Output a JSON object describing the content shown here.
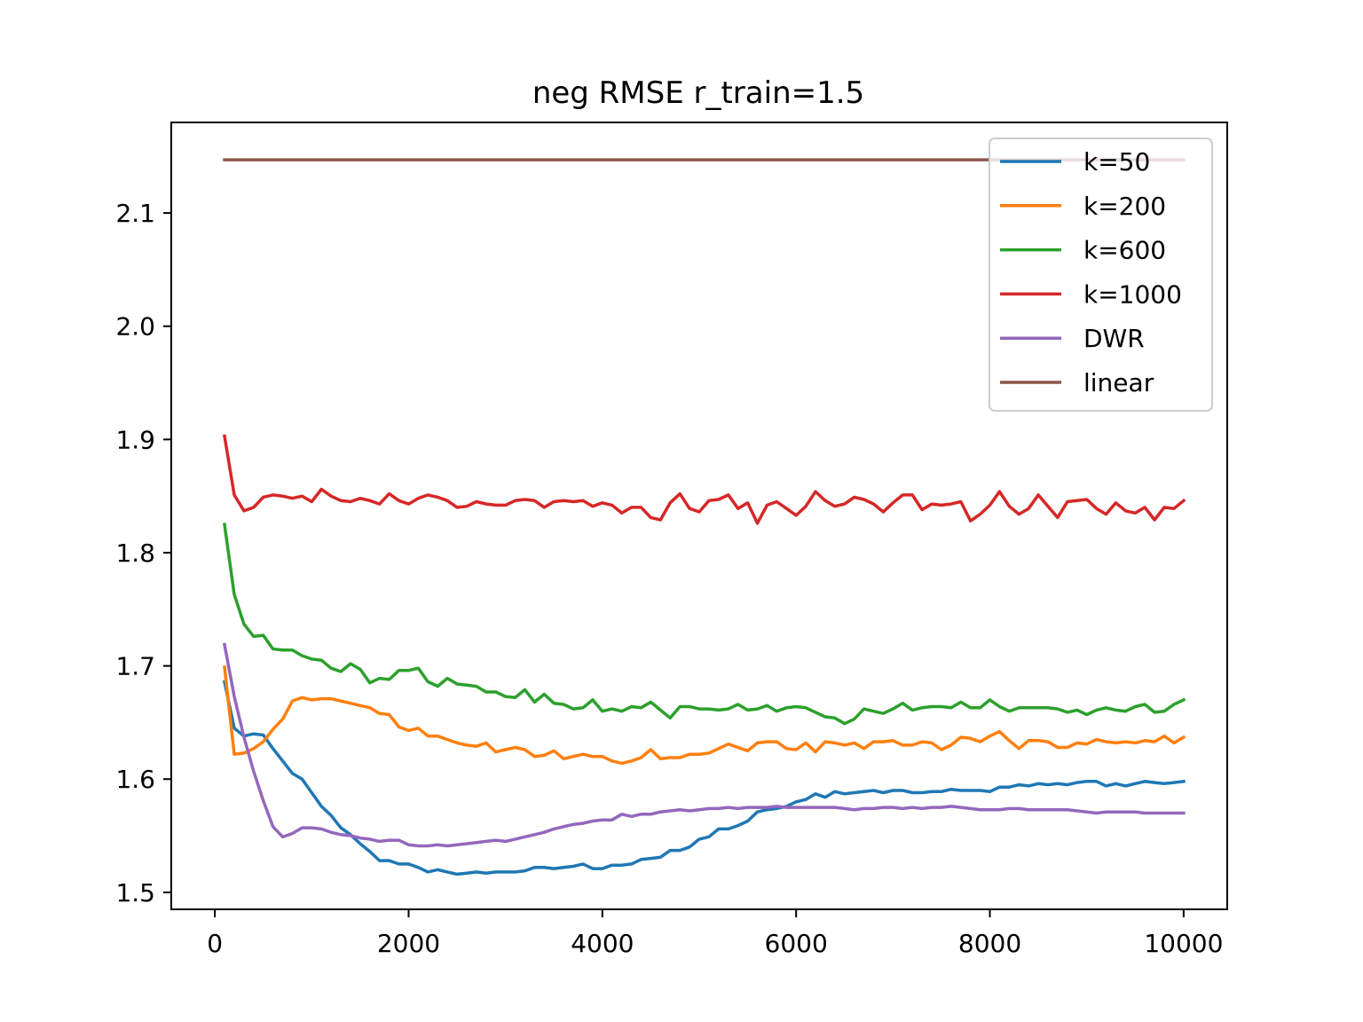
{
  "chart_data": {
    "type": "line",
    "title": "neg RMSE r_train=1.5",
    "xlabel": "",
    "ylabel": "",
    "xlim": [
      -450,
      10450
    ],
    "ylim": [
      1.485,
      2.18
    ],
    "x_ticks": [
      0,
      2000,
      4000,
      6000,
      8000,
      10000
    ],
    "x_tick_labels": [
      "0",
      "2000",
      "4000",
      "6000",
      "8000",
      "10000"
    ],
    "y_ticks": [
      1.5,
      1.6,
      1.7,
      1.8,
      1.9,
      2.0,
      2.1
    ],
    "y_tick_labels": [
      "1.5",
      "1.6",
      "1.7",
      "1.8",
      "1.9",
      "2.0",
      "2.1"
    ],
    "grid": false,
    "legend_position": "top-right",
    "x_start": 100,
    "x_step": 100,
    "series": [
      {
        "name": "k=50",
        "color": "#1f77b4",
        "values": [
          1.686,
          1.645,
          1.638,
          1.64,
          1.639,
          1.627,
          1.616,
          1.605,
          1.6,
          1.588,
          1.576,
          1.568,
          1.557,
          1.551,
          1.543,
          1.536,
          1.528,
          1.528,
          1.525,
          1.525,
          1.522,
          1.518,
          1.52,
          1.518,
          1.516,
          1.517,
          1.518,
          1.517,
          1.518,
          1.518,
          1.518,
          1.519,
          1.522,
          1.522,
          1.521,
          1.522,
          1.523,
          1.525,
          1.521,
          1.521,
          1.524,
          1.524,
          1.525,
          1.529,
          1.53,
          1.531,
          1.537,
          1.537,
          1.54,
          1.547,
          1.549,
          1.556,
          1.556,
          1.559,
          1.563,
          1.571,
          1.573,
          1.574,
          1.576,
          1.58,
          1.582,
          1.587,
          1.584,
          1.589,
          1.587,
          1.588,
          1.589,
          1.59,
          1.588,
          1.59,
          1.59,
          1.588,
          1.588,
          1.589,
          1.589,
          1.591,
          1.59,
          1.59,
          1.59,
          1.589,
          1.593,
          1.593,
          1.595,
          1.594,
          1.596,
          1.595,
          1.596,
          1.595,
          1.597,
          1.598,
          1.598,
          1.594,
          1.596,
          1.594,
          1.596,
          1.598,
          1.597,
          1.596,
          1.597,
          1.598
        ]
      },
      {
        "name": "k=200",
        "color": "#ff7f0e",
        "values": [
          1.699,
          1.622,
          1.623,
          1.627,
          1.633,
          1.644,
          1.653,
          1.669,
          1.672,
          1.67,
          1.671,
          1.671,
          1.669,
          1.667,
          1.665,
          1.663,
          1.658,
          1.657,
          1.646,
          1.643,
          1.645,
          1.638,
          1.638,
          1.635,
          1.632,
          1.63,
          1.629,
          1.632,
          1.624,
          1.626,
          1.628,
          1.626,
          1.62,
          1.621,
          1.625,
          1.618,
          1.62,
          1.622,
          1.62,
          1.62,
          1.616,
          1.614,
          1.616,
          1.619,
          1.626,
          1.618,
          1.619,
          1.619,
          1.622,
          1.622,
          1.623,
          1.627,
          1.631,
          1.628,
          1.625,
          1.632,
          1.633,
          1.633,
          1.627,
          1.626,
          1.632,
          1.624,
          1.633,
          1.632,
          1.63,
          1.632,
          1.627,
          1.633,
          1.633,
          1.634,
          1.63,
          1.63,
          1.633,
          1.632,
          1.626,
          1.63,
          1.637,
          1.636,
          1.633,
          1.638,
          1.642,
          1.634,
          1.627,
          1.634,
          1.634,
          1.633,
          1.628,
          1.628,
          1.632,
          1.631,
          1.635,
          1.633,
          1.632,
          1.633,
          1.632,
          1.634,
          1.633,
          1.638,
          1.632,
          1.637
        ]
      },
      {
        "name": "k=600",
        "color": "#2ca02c",
        "values": [
          1.825,
          1.763,
          1.737,
          1.726,
          1.727,
          1.715,
          1.714,
          1.714,
          1.709,
          1.706,
          1.705,
          1.698,
          1.695,
          1.702,
          1.697,
          1.685,
          1.689,
          1.688,
          1.696,
          1.696,
          1.698,
          1.686,
          1.682,
          1.689,
          1.684,
          1.683,
          1.682,
          1.677,
          1.677,
          1.673,
          1.672,
          1.679,
          1.668,
          1.675,
          1.667,
          1.666,
          1.662,
          1.663,
          1.67,
          1.66,
          1.662,
          1.66,
          1.664,
          1.663,
          1.668,
          1.661,
          1.654,
          1.664,
          1.664,
          1.662,
          1.662,
          1.661,
          1.662,
          1.666,
          1.661,
          1.662,
          1.665,
          1.66,
          1.663,
          1.664,
          1.663,
          1.659,
          1.655,
          1.654,
          1.649,
          1.653,
          1.662,
          1.66,
          1.658,
          1.662,
          1.667,
          1.661,
          1.663,
          1.664,
          1.664,
          1.663,
          1.668,
          1.663,
          1.663,
          1.67,
          1.664,
          1.66,
          1.663,
          1.663,
          1.663,
          1.663,
          1.662,
          1.659,
          1.661,
          1.657,
          1.661,
          1.663,
          1.661,
          1.66,
          1.664,
          1.666,
          1.659,
          1.66,
          1.666,
          1.67
        ]
      },
      {
        "name": "k=1000",
        "color": "#d62728",
        "values": [
          1.903,
          1.851,
          1.837,
          1.84,
          1.849,
          1.851,
          1.85,
          1.848,
          1.85,
          1.845,
          1.856,
          1.85,
          1.846,
          1.845,
          1.848,
          1.846,
          1.843,
          1.852,
          1.846,
          1.843,
          1.848,
          1.851,
          1.849,
          1.846,
          1.84,
          1.841,
          1.845,
          1.843,
          1.842,
          1.842,
          1.846,
          1.847,
          1.846,
          1.84,
          1.845,
          1.846,
          1.845,
          1.846,
          1.841,
          1.844,
          1.842,
          1.835,
          1.84,
          1.84,
          1.831,
          1.829,
          1.844,
          1.852,
          1.839,
          1.836,
          1.846,
          1.847,
          1.851,
          1.839,
          1.844,
          1.826,
          1.842,
          1.845,
          1.839,
          1.833,
          1.841,
          1.854,
          1.846,
          1.841,
          1.843,
          1.849,
          1.847,
          1.843,
          1.836,
          1.844,
          1.851,
          1.851,
          1.838,
          1.843,
          1.842,
          1.843,
          1.845,
          1.828,
          1.834,
          1.842,
          1.854,
          1.841,
          1.834,
          1.839,
          1.851,
          1.841,
          1.831,
          1.845,
          1.846,
          1.847,
          1.839,
          1.834,
          1.844,
          1.837,
          1.835,
          1.84,
          1.829,
          1.84,
          1.839,
          1.846
        ]
      },
      {
        "name": "DWR",
        "color": "#9467bd",
        "values": [
          1.719,
          1.673,
          1.637,
          1.607,
          1.581,
          1.558,
          1.549,
          1.552,
          1.557,
          1.557,
          1.556,
          1.553,
          1.551,
          1.55,
          1.548,
          1.547,
          1.545,
          1.546,
          1.546,
          1.542,
          1.541,
          1.541,
          1.542,
          1.541,
          1.542,
          1.543,
          1.544,
          1.545,
          1.546,
          1.545,
          1.547,
          1.549,
          1.551,
          1.553,
          1.556,
          1.558,
          1.56,
          1.561,
          1.563,
          1.564,
          1.564,
          1.569,
          1.567,
          1.569,
          1.569,
          1.571,
          1.572,
          1.573,
          1.572,
          1.573,
          1.574,
          1.574,
          1.575,
          1.574,
          1.575,
          1.575,
          1.575,
          1.576,
          1.575,
          1.575,
          1.575,
          1.575,
          1.575,
          1.575,
          1.574,
          1.573,
          1.574,
          1.574,
          1.575,
          1.575,
          1.574,
          1.575,
          1.574,
          1.575,
          1.575,
          1.576,
          1.575,
          1.574,
          1.573,
          1.573,
          1.573,
          1.574,
          1.574,
          1.573,
          1.573,
          1.573,
          1.573,
          1.573,
          1.572,
          1.571,
          1.57,
          1.571,
          1.571,
          1.571,
          1.571,
          1.57,
          1.57,
          1.57,
          1.57,
          1.57
        ]
      },
      {
        "name": "linear",
        "color": "#8c564b",
        "values": [
          2.147,
          2.147
        ]
      }
    ],
    "linear_x": [
      100,
      10000
    ]
  }
}
